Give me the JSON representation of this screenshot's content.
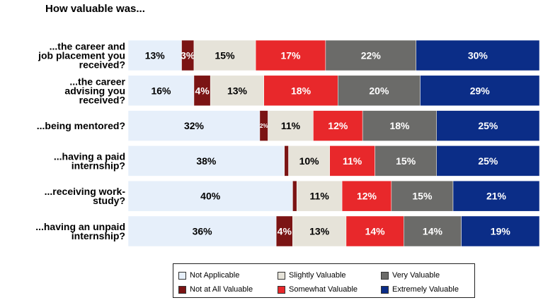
{
  "chart_data": {
    "type": "bar",
    "stacked": true,
    "orientation": "horizontal",
    "title": "How valuable was...",
    "categories": [
      [
        "...the career and",
        "job placement you",
        "received?"
      ],
      [
        "...the career",
        "advising you",
        "received?"
      ],
      [
        "...being mentored?"
      ],
      [
        "...having a paid",
        "internship?"
      ],
      [
        "...receiving work-",
        "study?"
      ],
      [
        "...having an unpaid",
        "internship?"
      ]
    ],
    "series": [
      {
        "name": "Not Applicable",
        "color": "#e6effa",
        "label_color": "#000000",
        "values": [
          13,
          16,
          32,
          38,
          40,
          36
        ],
        "labels": [
          "13%",
          "16%",
          "32%",
          "38%",
          "40%",
          "36%"
        ]
      },
      {
        "name": "Not at All Valuable",
        "color": "#7b1414",
        "label_color": "#ffffff",
        "values": [
          3,
          4,
          2,
          1,
          1,
          4
        ],
        "labels": [
          "3%",
          "4%",
          "2%",
          "",
          "",
          "4%"
        ]
      },
      {
        "name": "Slightly Valuable",
        "color": "#e6e3d9",
        "label_color": "#000000",
        "values": [
          15,
          13,
          11,
          10,
          11,
          13
        ],
        "labels": [
          "15%",
          "13%",
          "11%",
          "10%",
          "11%",
          "13%"
        ]
      },
      {
        "name": "Somewhat Valuable",
        "color": "#e8282b",
        "label_color": "#ffffff",
        "values": [
          17,
          18,
          12,
          11,
          12,
          14
        ],
        "labels": [
          "17%",
          "18%",
          "12%",
          "11%",
          "12%",
          "14%"
        ]
      },
      {
        "name": "Very Valuable",
        "color": "#6b6b69",
        "label_color": "#ffffff",
        "values": [
          22,
          20,
          18,
          15,
          15,
          14
        ],
        "labels": [
          "22%",
          "20%",
          "18%",
          "15%",
          "15%",
          "14%"
        ]
      },
      {
        "name": "Extremely Valuable",
        "color": "#0b2d87",
        "label_color": "#ffffff",
        "values": [
          30,
          29,
          25,
          25,
          21,
          19
        ],
        "labels": [
          "30%",
          "29%",
          "25%",
          "25%",
          "21%",
          "19%"
        ]
      }
    ],
    "legend_position": "bottom",
    "legend_order": [
      "Not Applicable",
      "Slightly Valuable",
      "Very Valuable",
      "Not at All Valuable",
      "Somewhat Valuable",
      "Extremely Valuable"
    ],
    "grid": false
  }
}
